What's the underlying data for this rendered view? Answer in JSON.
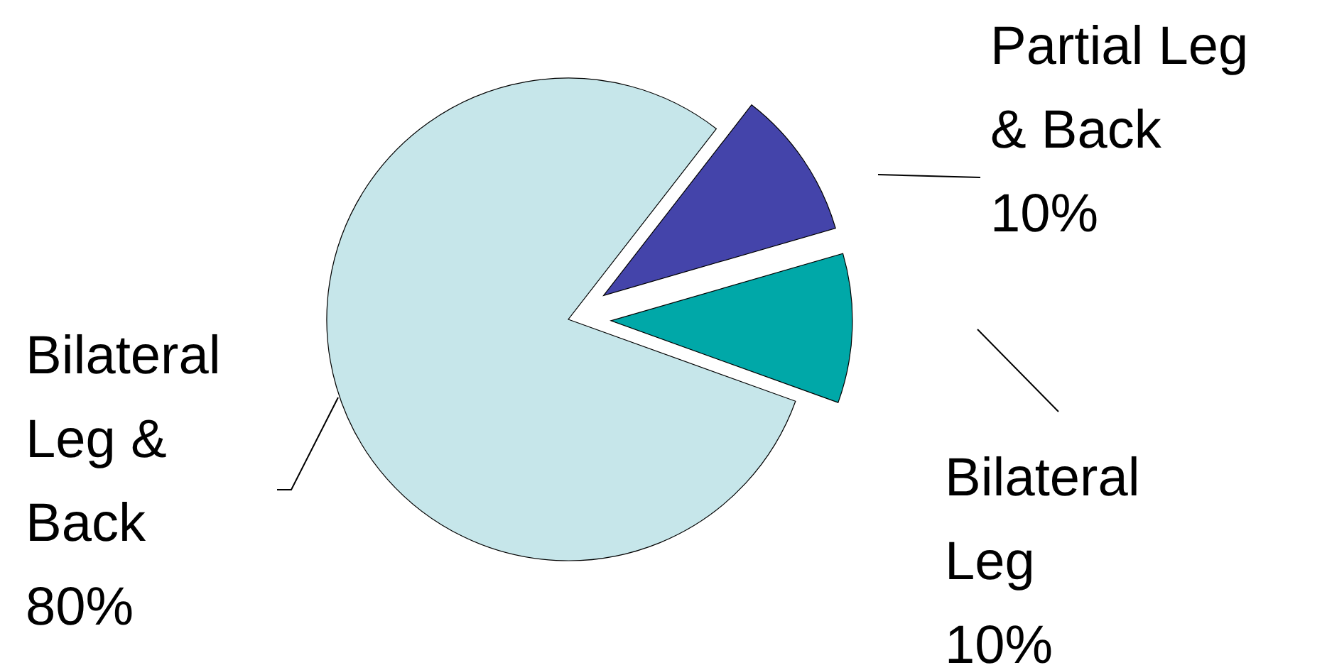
{
  "chart_data": {
    "type": "pie",
    "categories": [
      "Partial Leg & Back",
      "Bilateral Leg",
      "Bilateral Leg & Back"
    ],
    "values": [
      10,
      10,
      80
    ],
    "colors": [
      "#4444aa",
      "#00a8a8",
      "#c6e6ea"
    ],
    "value_labels": [
      "10%",
      "10%",
      "80%"
    ]
  }
}
